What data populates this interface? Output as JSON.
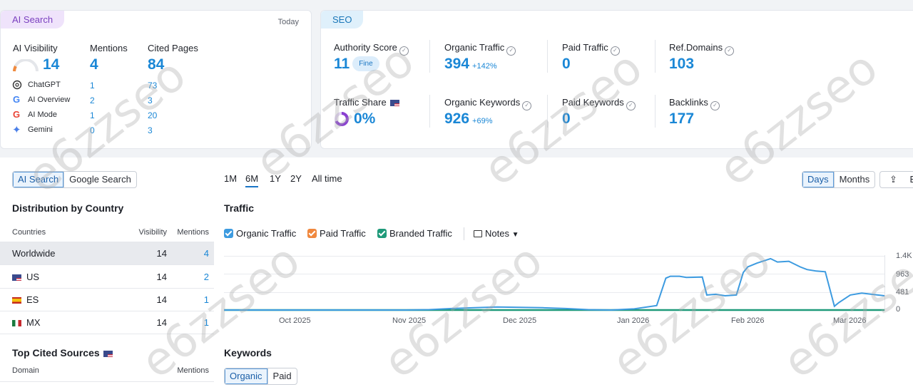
{
  "ai_card": {
    "tag": "AI Search",
    "date": "Today",
    "headers": {
      "visibility": "AI Visibility",
      "mentions": "Mentions",
      "cited": "Cited Pages"
    },
    "totals": {
      "visibility": "14",
      "mentions": "4",
      "cited": "84"
    },
    "rows": [
      {
        "name": "ChatGPT",
        "icon": "chatgpt-icon",
        "mentions": "1",
        "cited": "73"
      },
      {
        "name": "AI Overview",
        "icon": "google-icon",
        "mentions": "2",
        "cited": "3"
      },
      {
        "name": "AI Mode",
        "icon": "google-icon",
        "mentions": "1",
        "cited": "20"
      },
      {
        "name": "Gemini",
        "icon": "gemini-icon",
        "mentions": "0",
        "cited": "3"
      }
    ]
  },
  "seo_card": {
    "tag": "SEO",
    "authority": {
      "label": "Authority Score",
      "value": "11",
      "badge": "Fine"
    },
    "organic_traffic": {
      "label": "Organic Traffic",
      "value": "394",
      "change": "+142%"
    },
    "paid_traffic": {
      "label": "Paid Traffic",
      "value": "0"
    },
    "ref_domains": {
      "label": "Ref.Domains",
      "value": "103"
    },
    "traffic_share": {
      "label": "Traffic Share",
      "value": "0%"
    },
    "organic_keywords": {
      "label": "Organic Keywords",
      "value": "926",
      "change": "+69%"
    },
    "paid_keywords": {
      "label": "Paid Keywords",
      "value": "0"
    },
    "backlinks": {
      "label": "Backlinks",
      "value": "177"
    }
  },
  "left_panel": {
    "toggle": [
      "AI Search",
      "Google Search"
    ],
    "title": "Distribution by Country",
    "columns": [
      "Countries",
      "Visibility",
      "Mentions"
    ],
    "rows": [
      {
        "country": "Worldwide",
        "visibility": "14",
        "mentions": "4"
      },
      {
        "country": "US",
        "visibility": "14",
        "mentions": "2"
      },
      {
        "country": "ES",
        "visibility": "14",
        "mentions": "1"
      },
      {
        "country": "MX",
        "visibility": "14",
        "mentions": "1"
      }
    ],
    "cited_title": "Top Cited Sources",
    "cited_columns": [
      "Domain",
      "Mentions"
    ]
  },
  "range_tabs": [
    "1M",
    "6M",
    "1Y",
    "2Y",
    "All time"
  ],
  "view_toggle": [
    "Days",
    "Months"
  ],
  "export_label": "Exp",
  "traffic_title": "Traffic",
  "legend": {
    "organic": "Organic Traffic",
    "paid": "Paid Traffic",
    "branded": "Branded Traffic",
    "notes": "Notes"
  },
  "keywords_title": "Keywords",
  "keywords_toggle": [
    "Organic",
    "Paid"
  ],
  "watermark": "e6zzseo",
  "colors": {
    "organic": "#3d9be0",
    "branded": "#1f9a7a",
    "paid": "#f0883e"
  },
  "chart_data": {
    "type": "line",
    "x_ticks": [
      "Oct 2025",
      "Nov 2025",
      "Dec 2025",
      "Jan 2026",
      "Feb 2026",
      "Mar 2026"
    ],
    "y_ticks": [
      "1.4K",
      "963",
      "481",
      "0"
    ],
    "ylim": [
      0,
      1444
    ],
    "series": [
      {
        "name": "Organic Traffic",
        "values": [
          [
            0,
            0
          ],
          [
            1,
            0
          ],
          [
            2,
            0
          ],
          [
            3,
            0
          ],
          [
            4,
            0
          ],
          [
            5,
            0
          ],
          [
            6,
            0
          ],
          [
            7,
            0
          ],
          [
            8,
            0
          ],
          [
            9,
            10
          ],
          [
            10,
            40
          ],
          [
            11,
            60
          ],
          [
            12,
            80
          ],
          [
            13,
            70
          ],
          [
            14,
            60
          ],
          [
            15,
            40
          ],
          [
            16,
            10
          ],
          [
            17,
            0
          ],
          [
            18,
            30
          ],
          [
            19,
            120
          ],
          [
            19.4,
            850
          ],
          [
            19.6,
            900
          ],
          [
            20,
            900
          ],
          [
            20.3,
            870
          ],
          [
            21,
            880
          ],
          [
            21.2,
            400
          ],
          [
            21.6,
            420
          ],
          [
            22,
            380
          ],
          [
            22.5,
            400
          ],
          [
            22.8,
            1000
          ],
          [
            23,
            1150
          ],
          [
            23.4,
            1250
          ],
          [
            24,
            1370
          ],
          [
            24.3,
            1280
          ],
          [
            24.8,
            1300
          ],
          [
            25.3,
            1150
          ],
          [
            25.6,
            1080
          ],
          [
            26,
            1040
          ],
          [
            26.4,
            1020
          ],
          [
            26.8,
            100
          ],
          [
            27,
            200
          ],
          [
            27.5,
            400
          ],
          [
            28,
            450
          ],
          [
            28.7,
            400
          ],
          [
            29,
            380
          ]
        ]
      },
      {
        "name": "Branded Traffic",
        "values": [
          [
            0,
            0
          ],
          [
            29,
            0
          ]
        ]
      }
    ]
  }
}
